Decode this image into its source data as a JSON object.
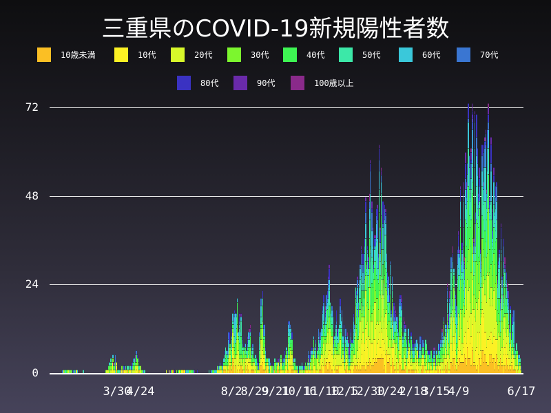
{
  "title": "三重県のCOVID-19新規陽性者数",
  "legend": [
    {
      "label": "10歳未満",
      "color": "#fbbf24"
    },
    {
      "label": "10代",
      "color": "#fcf124"
    },
    {
      "label": "20代",
      "color": "#d8f82a"
    },
    {
      "label": "30代",
      "color": "#7cf62e"
    },
    {
      "label": "40代",
      "color": "#3ef553"
    },
    {
      "label": "50代",
      "color": "#3ce8a8"
    },
    {
      "label": "60代",
      "color": "#3ac8da"
    },
    {
      "label": "70代",
      "color": "#3a76d2"
    },
    {
      "label": "80代",
      "color": "#3a32c2"
    },
    {
      "label": "90代",
      "color": "#6a2aaa"
    },
    {
      "label": "100歳以上",
      "color": "#8a2a8a"
    }
  ],
  "yaxis": {
    "ticks": [
      "0",
      "24",
      "48",
      "72"
    ]
  },
  "xaxis": {
    "ticks": [
      "3/30",
      "4/24",
      "8/2",
      "8/29",
      "9/21",
      "10/16",
      "11/10",
      "12/5",
      "12/30",
      "1/24",
      "2/18",
      "3/15",
      "4/9",
      "6/17"
    ]
  },
  "chart_data": {
    "type": "bar",
    "stacked": true,
    "title": "三重県のCOVID-19新規陽性者数",
    "xlabel": "",
    "ylabel": "",
    "ylim": [
      0,
      72
    ],
    "grid": true,
    "legend_position": "top",
    "series_names": [
      "10歳未満",
      "10代",
      "20代",
      "30代",
      "40代",
      "50代",
      "60代",
      "70代",
      "80代",
      "90代",
      "100歳以上"
    ],
    "x_tick_labels": [
      "3/30",
      "4/24",
      "8/2",
      "8/29",
      "9/21",
      "10/16",
      "11/10",
      "12/5",
      "12/30",
      "1/24",
      "2/18",
      "3/15",
      "4/9",
      "6/17"
    ],
    "daily_total_anchor_points": [
      {
        "date": "2020-01-30",
        "total": 1
      },
      {
        "date": "2020-03-15",
        "total": 0
      },
      {
        "date": "2020-03-27",
        "total": 5
      },
      {
        "date": "2020-04-01",
        "total": 1
      },
      {
        "date": "2020-04-08",
        "total": 2
      },
      {
        "date": "2020-04-14",
        "total": 2
      },
      {
        "date": "2020-04-19",
        "total": 6
      },
      {
        "date": "2020-04-24",
        "total": 2
      },
      {
        "date": "2020-05-01",
        "total": 0
      },
      {
        "date": "2020-06-15",
        "total": 1
      },
      {
        "date": "2020-07-05",
        "total": 0
      },
      {
        "date": "2020-07-20",
        "total": 2
      },
      {
        "date": "2020-07-28",
        "total": 8
      },
      {
        "date": "2020-08-02",
        "total": 12
      },
      {
        "date": "2020-08-07",
        "total": 24
      },
      {
        "date": "2020-08-12",
        "total": 14
      },
      {
        "date": "2020-08-18",
        "total": 6
      },
      {
        "date": "2020-08-22",
        "total": 14
      },
      {
        "date": "2020-08-27",
        "total": 6
      },
      {
        "date": "2020-09-01",
        "total": 3
      },
      {
        "date": "2020-09-05",
        "total": 25
      },
      {
        "date": "2020-09-10",
        "total": 4
      },
      {
        "date": "2020-09-21",
        "total": 3
      },
      {
        "date": "2020-09-28",
        "total": 5
      },
      {
        "date": "2020-10-05",
        "total": 13
      },
      {
        "date": "2020-10-12",
        "total": 2
      },
      {
        "date": "2020-10-20",
        "total": 2
      },
      {
        "date": "2020-11-01",
        "total": 8
      },
      {
        "date": "2020-11-10",
        "total": 12
      },
      {
        "date": "2020-11-16",
        "total": 28
      },
      {
        "date": "2020-11-22",
        "total": 14
      },
      {
        "date": "2020-12-01",
        "total": 16
      },
      {
        "date": "2020-12-05",
        "total": 10
      },
      {
        "date": "2020-12-14",
        "total": 14
      },
      {
        "date": "2020-12-22",
        "total": 24
      },
      {
        "date": "2021-01-01",
        "total": 48
      },
      {
        "date": "2021-01-08",
        "total": 44
      },
      {
        "date": "2021-01-12",
        "total": 54
      },
      {
        "date": "2021-01-18",
        "total": 40
      },
      {
        "date": "2021-01-24",
        "total": 26
      },
      {
        "date": "2021-01-30",
        "total": 14
      },
      {
        "date": "2021-02-06",
        "total": 19
      },
      {
        "date": "2021-02-12",
        "total": 10
      },
      {
        "date": "2021-02-18",
        "total": 8
      },
      {
        "date": "2021-03-01",
        "total": 8
      },
      {
        "date": "2021-03-15",
        "total": 6
      },
      {
        "date": "2021-03-25",
        "total": 15
      },
      {
        "date": "2021-04-01",
        "total": 24
      },
      {
        "date": "2021-04-09",
        "total": 35
      },
      {
        "date": "2021-04-16",
        "total": 48
      },
      {
        "date": "2021-04-22",
        "total": 72
      },
      {
        "date": "2021-04-27",
        "total": 58
      },
      {
        "date": "2021-05-03",
        "total": 44
      },
      {
        "date": "2021-05-08",
        "total": 55
      },
      {
        "date": "2021-05-13",
        "total": 62
      },
      {
        "date": "2021-05-18",
        "total": 46
      },
      {
        "date": "2021-05-25",
        "total": 36
      },
      {
        "date": "2021-06-01",
        "total": 26
      },
      {
        "date": "2021-06-08",
        "total": 16
      },
      {
        "date": "2021-06-14",
        "total": 6
      },
      {
        "date": "2021-06-17",
        "total": 3
      }
    ],
    "x_range": [
      "2020-01-16",
      "2021-06-20"
    ]
  }
}
